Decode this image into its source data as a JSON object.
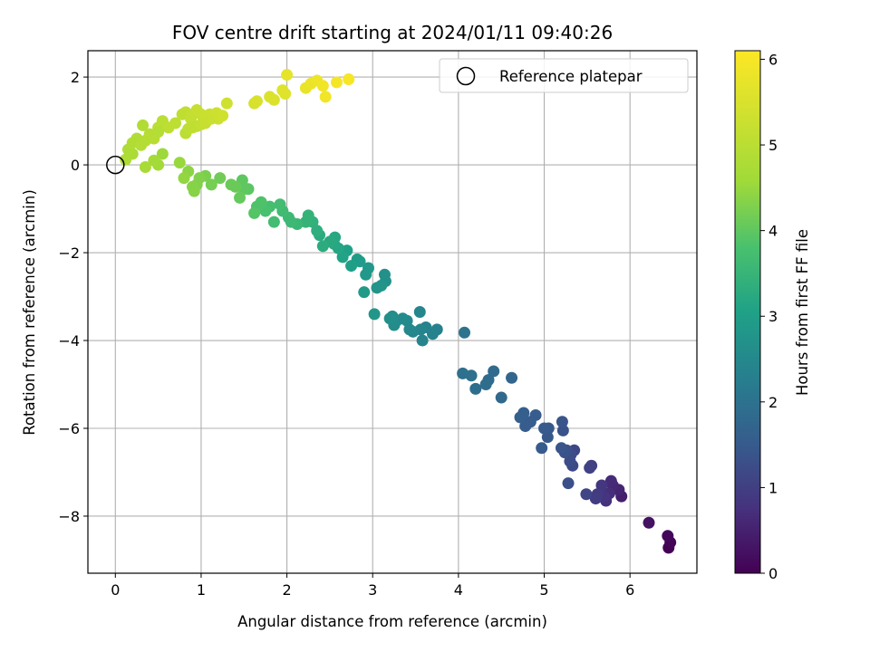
{
  "chart_data": {
    "type": "scatter",
    "title": "FOV centre drift starting at 2024/01/11 09:40:26",
    "xlabel": "Angular distance from reference (arcmin)",
    "ylabel": "Rotation from reference (arcmin)",
    "xlim": [
      -0.32,
      6.78
    ],
    "ylim": [
      -9.3,
      2.6
    ],
    "xticks": [
      0,
      1,
      2,
      3,
      4,
      5,
      6
    ],
    "yticks": [
      2,
      0,
      -2,
      -4,
      -6,
      -8
    ],
    "grid": true,
    "legend": {
      "placement": "top-right",
      "entries": [
        "Reference platepar"
      ]
    },
    "reference_point": {
      "x": 0,
      "y": 0,
      "label": "Reference platepar"
    },
    "colorbar": {
      "label": "Hours from first FF file",
      "range": [
        0,
        6.1
      ],
      "ticks": [
        0,
        1,
        2,
        3,
        4,
        5,
        6
      ],
      "colormap": "viridis"
    },
    "x": [
      6.45,
      6.47,
      6.44,
      6.22,
      5.9,
      5.87,
      5.8,
      5.78,
      5.76,
      5.72,
      5.7,
      5.67,
      5.62,
      5.6,
      5.55,
      5.53,
      5.49,
      5.35,
      5.33,
      5.31,
      5.3,
      5.28,
      5.26,
      5.24,
      5.22,
      5.21,
      5.2,
      5.05,
      5.04,
      5.0,
      4.97,
      4.9,
      4.84,
      4.78,
      4.76,
      4.72,
      4.62,
      4.5,
      4.41,
      4.35,
      4.32,
      4.2,
      4.15,
      4.05,
      4.07,
      3.75,
      3.7,
      3.62,
      3.58,
      3.56,
      3.55,
      3.47,
      3.43,
      3.4,
      3.35,
      3.28,
      3.25,
      3.23,
      3.2,
      3.15,
      3.14,
      3.1,
      3.05,
      3.02,
      2.95,
      2.92,
      2.9,
      2.85,
      2.82,
      2.75,
      2.7,
      2.65,
      2.6,
      2.56,
      2.55,
      2.5,
      2.42,
      2.38,
      2.35,
      2.3,
      2.25,
      2.22,
      2.12,
      2.05,
      2.02,
      1.95,
      1.92,
      1.85,
      1.8,
      1.75,
      1.7,
      1.65,
      1.62,
      1.55,
      1.5,
      1.48,
      1.45,
      1.4,
      1.35,
      1.22,
      1.12,
      1.05,
      0.98,
      0.95,
      0.92,
      0.9,
      0.85,
      0.8,
      0.75,
      0.55,
      0.5,
      0.45,
      0.35,
      0.2,
      0.12,
      0.15,
      0.2,
      0.25,
      0.3,
      0.35,
      0.4,
      0.45,
      0.5,
      0.55,
      0.62,
      0.7,
      0.78,
      0.82,
      0.88,
      0.9,
      0.95,
      1.0,
      1.05,
      1.1,
      1.2,
      1.3,
      0.32,
      0.5,
      0.82,
      0.85,
      0.9,
      0.95,
      1.0,
      1.05,
      1.12,
      1.18,
      1.25,
      1.62,
      1.65,
      1.8,
      1.85,
      1.95,
      1.98,
      2.0,
      2.22,
      2.28,
      2.35,
      2.42,
      2.45,
      2.58,
      2.72
    ],
    "y": [
      -8.72,
      -8.6,
      -8.45,
      -8.15,
      -7.55,
      -7.4,
      -7.3,
      -7.2,
      -7.48,
      -7.65,
      -7.55,
      -7.3,
      -7.5,
      -7.6,
      -6.85,
      -6.9,
      -7.5,
      -6.5,
      -6.85,
      -6.6,
      -6.75,
      -7.25,
      -6.5,
      -6.55,
      -6.05,
      -5.85,
      -6.45,
      -6.0,
      -6.2,
      -6.0,
      -6.45,
      -5.7,
      -5.85,
      -5.95,
      -5.65,
      -5.75,
      -4.85,
      -5.3,
      -4.7,
      -4.9,
      -5.0,
      -5.1,
      -4.8,
      -4.75,
      -3.82,
      -3.75,
      -3.85,
      -3.7,
      -4.0,
      -3.75,
      -3.35,
      -3.8,
      -3.75,
      -3.55,
      -3.5,
      -3.55,
      -3.65,
      -3.45,
      -3.5,
      -2.65,
      -2.5,
      -2.75,
      -2.8,
      -3.4,
      -2.35,
      -2.5,
      -2.9,
      -2.2,
      -2.15,
      -2.3,
      -1.95,
      -2.1,
      -1.9,
      -1.65,
      -1.8,
      -1.75,
      -1.85,
      -1.6,
      -1.5,
      -1.3,
      -1.15,
      -1.3,
      -1.35,
      -1.3,
      -1.2,
      -1.05,
      -0.9,
      -1.3,
      -0.95,
      -1.05,
      -0.85,
      -0.95,
      -1.1,
      -0.55,
      -0.55,
      -0.35,
      -0.75,
      -0.5,
      -0.45,
      -0.3,
      -0.45,
      -0.25,
      -0.3,
      -0.45,
      -0.6,
      -0.5,
      -0.15,
      -0.3,
      0.05,
      0.25,
      0.0,
      0.1,
      -0.05,
      0.25,
      0.12,
      0.35,
      0.5,
      0.6,
      0.45,
      0.55,
      0.7,
      0.6,
      0.85,
      1.0,
      0.85,
      0.95,
      1.15,
      1.2,
      1.05,
      1.15,
      1.25,
      1.15,
      1.1,
      1.15,
      1.05,
      1.4,
      0.9,
      0.75,
      0.72,
      0.82,
      0.85,
      0.88,
      0.92,
      0.95,
      1.05,
      1.18,
      1.12,
      1.4,
      1.45,
      1.55,
      1.48,
      1.7,
      1.62,
      2.05,
      1.75,
      1.85,
      1.92,
      1.8,
      1.55,
      1.88,
      1.95
    ],
    "hours": [
      0.0,
      0.05,
      0.1,
      0.25,
      0.45,
      0.55,
      0.6,
      0.65,
      0.7,
      0.75,
      0.8,
      0.85,
      0.9,
      0.95,
      1.0,
      1.05,
      1.1,
      1.15,
      1.2,
      1.25,
      1.25,
      1.3,
      1.3,
      1.35,
      1.35,
      1.4,
      1.4,
      1.45,
      1.45,
      1.5,
      1.5,
      1.55,
      1.55,
      1.55,
      1.6,
      1.6,
      1.75,
      1.8,
      1.85,
      1.85,
      1.9,
      1.9,
      1.95,
      1.95,
      2.05,
      2.3,
      2.35,
      2.35,
      2.4,
      2.4,
      2.45,
      2.45,
      2.5,
      2.5,
      2.55,
      2.55,
      2.6,
      2.6,
      2.65,
      2.7,
      2.7,
      2.75,
      2.75,
      2.8,
      2.85,
      2.85,
      2.9,
      2.95,
      2.95,
      3.0,
      3.05,
      3.1,
      3.15,
      3.2,
      3.2,
      3.25,
      3.3,
      3.3,
      3.35,
      3.4,
      3.45,
      3.45,
      3.55,
      3.6,
      3.6,
      3.65,
      3.7,
      3.7,
      3.75,
      3.8,
      3.85,
      3.85,
      3.9,
      3.95,
      4.0,
      4.0,
      4.05,
      4.1,
      4.1,
      4.15,
      4.2,
      4.25,
      4.3,
      4.3,
      4.35,
      4.35,
      4.4,
      4.45,
      4.5,
      4.55,
      4.6,
      4.65,
      4.7,
      4.75,
      4.8,
      4.8,
      4.85,
      4.85,
      4.9,
      4.9,
      4.95,
      4.95,
      5.0,
      5.0,
      5.05,
      5.05,
      5.1,
      5.1,
      5.15,
      5.15,
      5.2,
      5.2,
      5.25,
      5.25,
      5.3,
      5.35,
      4.85,
      4.9,
      5.0,
      5.05,
      5.1,
      5.1,
      5.15,
      5.2,
      5.25,
      5.3,
      5.35,
      5.45,
      5.5,
      5.55,
      5.55,
      5.6,
      5.6,
      5.7,
      5.75,
      5.8,
      5.85,
      5.9,
      5.9,
      5.95,
      6.0
    ]
  }
}
